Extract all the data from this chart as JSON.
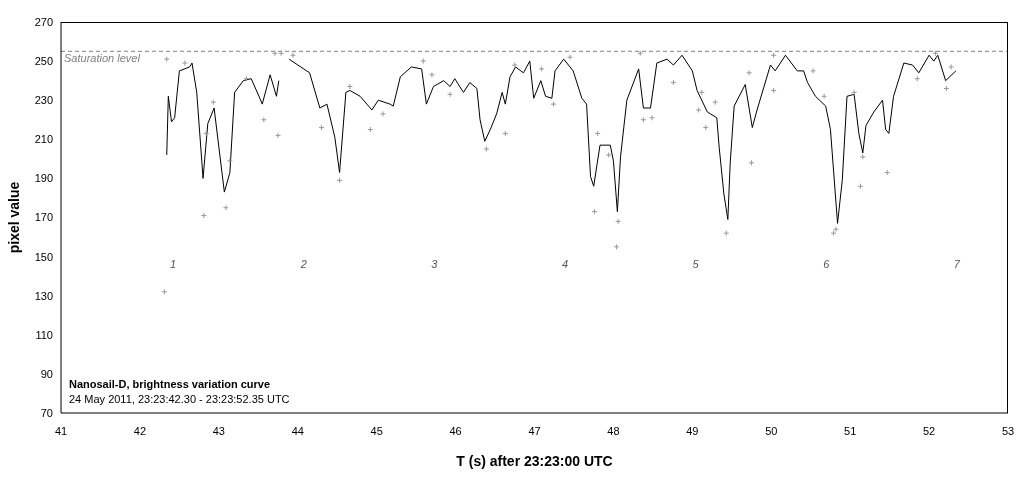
{
  "chart_data": {
    "type": "line",
    "xlabel": "T (s) after 23:23:00 UTC",
    "ylabel": "pixel value",
    "xlim": [
      41,
      53
    ],
    "xticks": [
      41,
      42,
      43,
      44,
      45,
      46,
      47,
      48,
      49,
      50,
      51,
      52,
      53
    ],
    "ylim": [
      70,
      270
    ],
    "yticks": [
      70,
      90,
      110,
      130,
      150,
      170,
      190,
      210,
      230,
      250,
      270
    ],
    "series": [
      {
        "color": "#000000",
        "marker": "none",
        "x": [
          42.34,
          42.36,
          42.4,
          42.44,
          42.5,
          42.63,
          42.66,
          42.72,
          42.8,
          42.86,
          42.94,
          43.07,
          43.14,
          43.2,
          43.31,
          43.41,
          43.52,
          43.55,
          43.65,
          43.73,
          43.76,
          43.82,
          43.89,
          44.15,
          44.28,
          44.37,
          44.47,
          44.53,
          44.61,
          44.66,
          44.79,
          44.94,
          45.02,
          45.17,
          45.21,
          45.3,
          45.44,
          45.57,
          45.63,
          45.72,
          45.85,
          45.93,
          45.99,
          46.1,
          46.18,
          46.27,
          46.31,
          46.37,
          46.44,
          46.52,
          46.59,
          46.63,
          46.69,
          46.76,
          46.86,
          46.94,
          46.99,
          47.08,
          47.14,
          47.22,
          47.26,
          47.37,
          47.49,
          47.6,
          47.66,
          47.71,
          47.75,
          47.83,
          47.96,
          48.0,
          48.05,
          48.09,
          48.17,
          48.32,
          48.38,
          48.47,
          48.55,
          48.68,
          48.76,
          48.87,
          49.0,
          49.06,
          49.19,
          49.31,
          49.34,
          49.4,
          49.45,
          49.48,
          49.53,
          49.67,
          49.76,
          49.82,
          49.99,
          50.05,
          50.18,
          50.33,
          50.41,
          50.46,
          50.56,
          50.69,
          50.75,
          50.84,
          50.9,
          50.96,
          51.05,
          51.11,
          51.16,
          51.2,
          51.3,
          51.41,
          51.45,
          51.49,
          51.55,
          51.68,
          51.79,
          51.87,
          52.0,
          52.06,
          52.11,
          52.21,
          52.34
        ],
        "values": [
          202,
          232,
          219,
          221,
          245,
          247,
          249,
          234,
          190,
          218,
          226,
          183,
          193,
          234,
          240,
          241,
          231,
          228,
          243,
          232,
          240,
          null,
          251,
          244,
          226,
          228,
          211,
          193,
          234,
          235,
          232,
          225,
          230,
          228,
          227,
          242,
          247,
          246,
          228,
          237,
          240,
          237,
          241,
          234,
          239,
          236,
          220,
          209,
          215,
          223,
          234,
          228,
          242,
          247,
          244,
          250,
          231,
          240,
          232,
          231,
          245,
          251,
          245,
          231,
          228,
          191,
          186,
          207,
          207,
          199,
          173,
          201,
          230,
          246,
          226,
          226,
          249,
          251,
          248,
          253,
          245,
          235,
          224,
          221,
          206,
          182,
          169,
          198,
          227,
          238,
          216,
          225,
          248,
          245,
          253,
          245,
          245,
          239,
          232,
          227,
          215,
          167,
          189,
          232,
          233,
          213,
          203,
          217,
          224,
          230,
          215,
          213,
          232,
          249,
          248,
          244,
          253,
          250,
          253,
          240,
          245
        ]
      },
      {
        "type": "scatter",
        "color": "#999999",
        "marker": "cross",
        "x": [
          42.31,
          42.34,
          42.57,
          42.81,
          42.84,
          42.93,
          43.09,
          43.14,
          43.35,
          43.57,
          43.71,
          43.75,
          43.79,
          43.94,
          44.3,
          44.53,
          44.66,
          44.92,
          45.08,
          45.59,
          45.7,
          45.93,
          46.39,
          46.63,
          46.75,
          47.09,
          47.24,
          47.45,
          47.76,
          47.8,
          47.94,
          48.04,
          48.06,
          48.34,
          48.38,
          48.49,
          48.76,
          49.08,
          49.12,
          49.17,
          49.29,
          49.43,
          49.72,
          49.75,
          50.03,
          50.03,
          50.53,
          50.67,
          50.79,
          50.82,
          51.05,
          51.13,
          51.16,
          51.47,
          51.85,
          52.08,
          52.22,
          52.28
        ],
        "values": [
          132,
          251,
          249,
          171,
          213,
          229,
          175,
          199,
          241,
          220,
          254,
          212,
          254,
          253,
          216,
          189,
          237,
          215,
          223,
          250,
          243,
          233,
          205,
          213,
          248,
          246,
          228,
          252,
          173,
          213,
          202,
          155,
          168,
          254,
          220,
          221,
          239,
          225,
          234,
          216,
          229,
          162,
          244,
          198,
          235,
          253,
          245,
          232,
          162,
          164,
          234,
          186,
          201,
          193,
          241,
          254,
          236,
          247
        ]
      }
    ],
    "ref_lines": [
      {
        "axis": "y",
        "value": 255,
        "label": "Saturation level",
        "color": "#808080",
        "line_style": "dashed"
      }
    ],
    "annotations": [
      "1",
      "2",
      "3",
      "4",
      "5",
      "6",
      "7",
      "Nanosail-D, brightness variation curve",
      "24 May 2011, 23:23:42.30 - 23:23:52.35 UTC"
    ]
  }
}
